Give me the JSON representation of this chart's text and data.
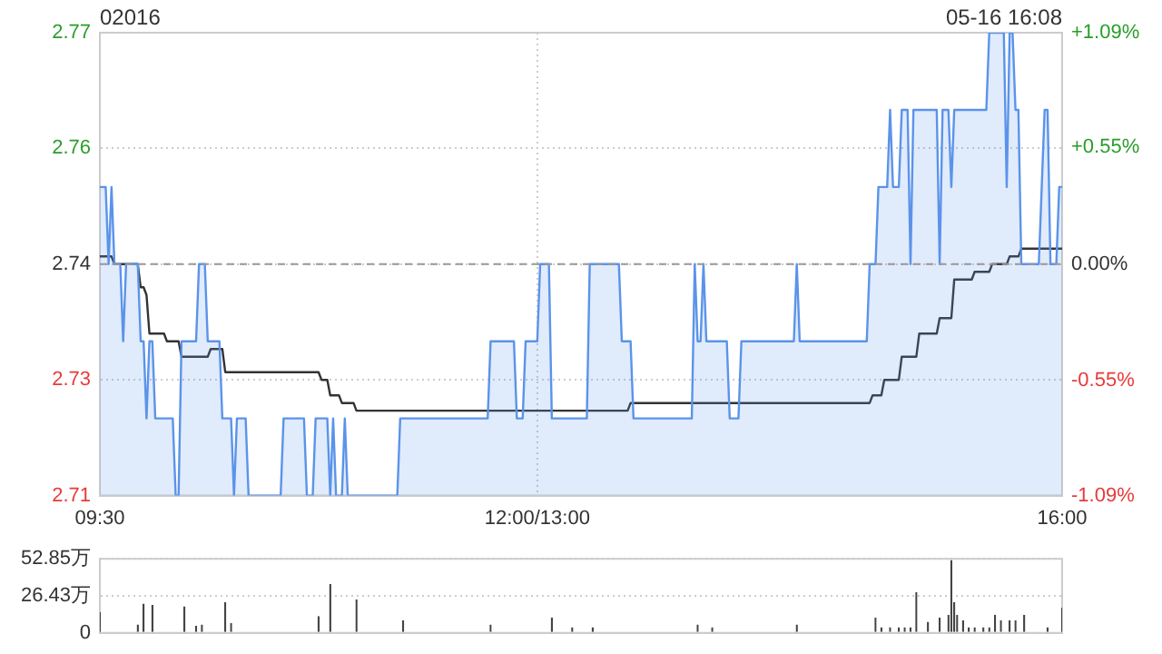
{
  "chart_data": [
    {
      "type": "area",
      "title": "02016",
      "annotations": [
        "05-16 16:08"
      ],
      "categories": [
        "09:30",
        null,
        null,
        null,
        null,
        null,
        null,
        null,
        null,
        null,
        null,
        null,
        null,
        null,
        null,
        null,
        null,
        null,
        null,
        null,
        null,
        null,
        null,
        null,
        null,
        null,
        null,
        null,
        null,
        null,
        null,
        null,
        null,
        null,
        null,
        null,
        null,
        null,
        null,
        null,
        null,
        null,
        null,
        null,
        null,
        null,
        null,
        null,
        null,
        null,
        null,
        null,
        null,
        null,
        null,
        null,
        null,
        null,
        null,
        null,
        null,
        null,
        null,
        null,
        null,
        null,
        null,
        null,
        null,
        null,
        null,
        null,
        null,
        null,
        null,
        null,
        null,
        null,
        null,
        null,
        null,
        null,
        null,
        null,
        null,
        null,
        null,
        null,
        null,
        null,
        null,
        null,
        null,
        null,
        null,
        null,
        null,
        null,
        null,
        null,
        null,
        null,
        null,
        null,
        null,
        null,
        null,
        null,
        null,
        null,
        null,
        null,
        null,
        null,
        null,
        null,
        null,
        null,
        null,
        null,
        null,
        null,
        null,
        null,
        null,
        null,
        null,
        null,
        null,
        null,
        null,
        null,
        null,
        null,
        null,
        null,
        null,
        null,
        null,
        null,
        null,
        null,
        null,
        null,
        null,
        null,
        null,
        null,
        null,
        null,
        "12:00/13:00",
        null,
        null,
        null,
        null,
        null,
        null,
        null,
        null,
        null,
        null,
        null,
        null,
        null,
        null,
        null,
        null,
        null,
        null,
        null,
        null,
        null,
        null,
        null,
        null,
        null,
        null,
        null,
        null,
        null,
        null,
        null,
        null,
        null,
        null,
        null,
        null,
        null,
        null,
        null,
        null,
        null,
        null,
        null,
        null,
        null,
        null,
        null,
        null,
        null,
        null,
        null,
        null,
        null,
        null,
        null,
        null,
        null,
        null,
        null,
        null,
        null,
        null,
        null,
        null,
        null,
        null,
        null,
        null,
        null,
        null,
        null,
        null,
        null,
        null,
        null,
        null,
        null,
        null,
        null,
        null,
        null,
        null,
        null,
        null,
        null,
        null,
        null,
        null,
        null,
        null,
        null,
        null,
        null,
        null,
        null,
        null,
        null,
        null,
        null,
        null,
        null,
        null,
        null,
        null,
        null,
        null,
        null,
        null,
        null,
        null,
        null,
        null,
        null,
        null,
        null,
        null,
        null,
        null,
        null,
        null,
        null,
        null,
        null,
        null,
        null,
        null,
        null,
        null,
        null,
        null,
        null,
        null,
        null,
        null,
        null,
        null,
        null,
        null,
        null,
        null,
        null,
        null,
        null,
        null,
        null,
        null,
        null,
        null,
        null,
        null,
        null,
        null,
        null,
        null,
        null,
        null,
        null,
        null,
        null,
        null,
        null,
        null,
        null,
        null,
        null,
        null,
        null,
        null,
        null,
        null,
        null,
        null,
        null,
        null,
        null,
        null,
        null,
        null,
        null,
        "16:00"
      ],
      "ylim": [
        2.71,
        2.77
      ],
      "yticks": [
        2.71,
        {
          "value": 2.725,
          "label": "2.73"
        },
        2.74,
        {
          "value": 2.755,
          "label": "2.76"
        },
        2.77
      ],
      "y2lim": [
        -1.09,
        1.09
      ],
      "y2ticks": [
        {
          "value": -1.09,
          "label": "-1.09%"
        },
        {
          "value": -0.55,
          "label": "-0.55%"
        },
        {
          "value": 0,
          "label": "0.00%"
        },
        {
          "value": 0.55,
          "label": "+0.55%"
        },
        {
          "value": 1.09,
          "label": "+1.09%"
        }
      ],
      "grid": true,
      "ref_lines": [
        {
          "axis": "y",
          "value": 2.74,
          "color": "#999999",
          "line_style": "dashed"
        }
      ],
      "series": [
        {
          "color": "#5b93ea",
          "values": [
            2.75,
            2.75,
            2.75,
            2.74,
            2.75,
            2.74,
            2.74,
            2.74,
            2.73,
            2.74,
            2.74,
            2.74,
            2.74,
            2.74,
            2.73,
            2.73,
            2.72,
            2.73,
            2.73,
            2.72,
            2.72,
            2.72,
            2.72,
            2.72,
            2.72,
            2.72,
            2.71,
            2.71,
            2.73,
            2.73,
            2.73,
            2.73,
            2.73,
            2.73,
            2.74,
            2.74,
            2.74,
            2.73,
            2.73,
            2.73,
            2.73,
            2.73,
            2.72,
            2.72,
            2.72,
            2.72,
            2.71,
            2.72,
            2.72,
            2.72,
            2.72,
            2.71,
            2.71,
            2.71,
            2.71,
            2.71,
            2.71,
            2.71,
            2.71,
            2.71,
            2.71,
            2.71,
            2.71,
            2.72,
            2.72,
            2.72,
            2.72,
            2.72,
            2.72,
            2.72,
            2.72,
            2.71,
            2.71,
            2.71,
            2.72,
            2.72,
            2.72,
            2.72,
            2.72,
            2.71,
            2.72,
            2.71,
            2.71,
            2.71,
            2.72,
            2.71,
            2.71,
            2.71,
            2.71,
            2.71,
            2.71,
            2.71,
            2.71,
            2.71,
            2.71,
            2.71,
            2.71,
            2.71,
            2.71,
            2.71,
            2.71,
            2.71,
            2.71,
            2.72,
            2.72,
            2.72,
            2.72,
            2.72,
            2.72,
            2.72,
            2.72,
            2.72,
            2.72,
            2.72,
            2.72,
            2.72,
            2.72,
            2.72,
            2.72,
            2.72,
            2.72,
            2.72,
            2.72,
            2.72,
            2.72,
            2.72,
            2.72,
            2.72,
            2.72,
            2.72,
            2.72,
            2.72,
            2.72,
            2.72,
            2.73,
            2.73,
            2.73,
            2.73,
            2.73,
            2.73,
            2.73,
            2.73,
            2.73,
            2.72,
            2.72,
            2.72,
            2.73,
            2.73,
            2.73,
            2.73,
            2.73,
            2.74,
            2.74,
            2.74,
            2.74,
            2.72,
            2.72,
            2.72,
            2.72,
            2.72,
            2.72,
            2.72,
            2.72,
            2.72,
            2.72,
            2.72,
            2.72,
            2.72,
            2.74,
            2.74,
            2.74,
            2.74,
            2.74,
            2.74,
            2.74,
            2.74,
            2.74,
            2.74,
            2.74,
            2.73,
            2.73,
            2.73,
            2.73,
            2.72,
            2.72,
            2.72,
            2.72,
            2.72,
            2.72,
            2.72,
            2.72,
            2.72,
            2.72,
            2.72,
            2.72,
            2.72,
            2.72,
            2.72,
            2.72,
            2.72,
            2.72,
            2.72,
            2.72,
            2.72,
            2.74,
            2.73,
            2.73,
            2.74,
            2.73,
            2.73,
            2.73,
            2.73,
            2.73,
            2.73,
            2.73,
            2.73,
            2.72,
            2.72,
            2.72,
            2.72,
            2.73,
            2.73,
            2.73,
            2.73,
            2.73,
            2.73,
            2.73,
            2.73,
            2.73,
            2.73,
            2.73,
            2.73,
            2.73,
            2.73,
            2.73,
            2.73,
            2.73,
            2.73,
            2.73,
            2.74,
            2.73,
            2.73,
            2.73,
            2.73,
            2.73,
            2.73,
            2.73,
            2.73,
            2.73,
            2.73,
            2.73,
            2.73,
            2.73,
            2.73,
            2.73,
            2.73,
            2.73,
            2.73,
            2.73,
            2.73,
            2.73,
            2.73,
            2.73,
            2.73,
            2.74,
            2.74,
            2.74,
            2.75,
            2.75,
            2.75,
            2.75,
            2.76,
            2.75,
            2.75,
            2.75,
            2.76,
            2.76,
            2.76,
            2.74,
            2.76,
            2.76,
            2.76,
            2.76,
            2.76,
            2.76,
            2.76,
            2.76,
            2.76,
            2.74,
            2.76,
            2.76,
            2.76,
            2.75,
            2.76,
            2.76,
            2.76,
            2.76,
            2.76,
            2.76,
            2.76,
            2.76,
            2.76,
            2.76,
            2.76,
            2.76,
            2.77,
            2.77,
            2.77,
            2.77,
            2.77,
            2.77,
            2.75,
            2.77,
            2.77,
            2.76,
            2.76,
            2.74,
            2.74,
            2.74,
            2.74,
            2.74,
            2.74,
            2.74,
            2.75,
            2.76,
            2.76,
            2.74,
            2.74,
            2.74,
            2.75,
            2.75
          ]
        },
        {
          "type": "line",
          "color": "#333333",
          "values": [
            2.741,
            2.741,
            2.741,
            2.741,
            2.741,
            2.74,
            2.74,
            2.74,
            2.74,
            2.74,
            2.74,
            2.74,
            2.74,
            2.74,
            2.737,
            2.737,
            2.736,
            2.731,
            2.731,
            2.731,
            2.731,
            2.731,
            2.731,
            2.73,
            2.73,
            2.73,
            2.73,
            2.73,
            2.728,
            2.728,
            2.728,
            2.728,
            2.728,
            2.728,
            2.728,
            2.728,
            2.728,
            2.728,
            2.729,
            2.729,
            2.729,
            2.729,
            2.729,
            2.726,
            2.726,
            2.726,
            2.726,
            2.726,
            2.726,
            2.726,
            2.726,
            2.726,
            2.726,
            2.726,
            2.726,
            2.726,
            2.726,
            2.726,
            2.726,
            2.726,
            2.726,
            2.726,
            2.726,
            2.726,
            2.726,
            2.726,
            2.726,
            2.726,
            2.726,
            2.726,
            2.726,
            2.726,
            2.726,
            2.726,
            2.726,
            2.726,
            2.725,
            2.725,
            2.725,
            2.723,
            2.723,
            2.723,
            2.723,
            2.722,
            2.722,
            2.722,
            2.722,
            2.722,
            2.721,
            2.721,
            2.721,
            2.721,
            2.721,
            2.721,
            2.721,
            2.721,
            2.721,
            2.721,
            2.721,
            2.721,
            2.721,
            2.721,
            2.721,
            2.721,
            2.721,
            2.721,
            2.721,
            2.721,
            2.721,
            2.721,
            2.721,
            2.721,
            2.721,
            2.721,
            2.721,
            2.721,
            2.721,
            2.721,
            2.721,
            2.721,
            2.721,
            2.721,
            2.721,
            2.721,
            2.721,
            2.721,
            2.721,
            2.721,
            2.721,
            2.721,
            2.721,
            2.721,
            2.721,
            2.721,
            2.721,
            2.721,
            2.721,
            2.721,
            2.721,
            2.721,
            2.721,
            2.721,
            2.721,
            2.721,
            2.721,
            2.721,
            2.721,
            2.721,
            2.721,
            2.721,
            2.721,
            2.721,
            2.721,
            2.721,
            2.721,
            2.721,
            2.721,
            2.721,
            2.721,
            2.721,
            2.721,
            2.721,
            2.721,
            2.721,
            2.721,
            2.721,
            2.721,
            2.721,
            2.721,
            2.721,
            2.721,
            2.721,
            2.721,
            2.721,
            2.721,
            2.721,
            2.721,
            2.721,
            2.721,
            2.721,
            2.721,
            2.721,
            2.722,
            2.722,
            2.722,
            2.722,
            2.722,
            2.722,
            2.722,
            2.722,
            2.722,
            2.722,
            2.722,
            2.722,
            2.722,
            2.722,
            2.722,
            2.722,
            2.722,
            2.722,
            2.722,
            2.722,
            2.722,
            2.722,
            2.722,
            2.722,
            2.722,
            2.722,
            2.722,
            2.722,
            2.722,
            2.722,
            2.722,
            2.722,
            2.722,
            2.722,
            2.722,
            2.722,
            2.722,
            2.722,
            2.722,
            2.722,
            2.722,
            2.722,
            2.722,
            2.722,
            2.722,
            2.722,
            2.722,
            2.722,
            2.722,
            2.722,
            2.722,
            2.722,
            2.722,
            2.722,
            2.722,
            2.722,
            2.722,
            2.722,
            2.722,
            2.722,
            2.722,
            2.722,
            2.722,
            2.722,
            2.722,
            2.722,
            2.722,
            2.722,
            2.722,
            2.722,
            2.722,
            2.722,
            2.722,
            2.722,
            2.722,
            2.722,
            2.722,
            2.722,
            2.722,
            2.722,
            2.722,
            2.722,
            2.722,
            2.723,
            2.723,
            2.723,
            2.723,
            2.725,
            2.725,
            2.725,
            2.725,
            2.725,
            2.725,
            2.728,
            2.728,
            2.728,
            2.728,
            2.728,
            2.728,
            2.731,
            2.731,
            2.731,
            2.731,
            2.731,
            2.731,
            2.731,
            2.733,
            2.733,
            2.733,
            2.733,
            2.733,
            2.738,
            2.738,
            2.738,
            2.738,
            2.738,
            2.738,
            2.738,
            2.739,
            2.739,
            2.739,
            2.739,
            2.739,
            2.739,
            2.74,
            2.74,
            2.74,
            2.74,
            2.74,
            2.74,
            2.741,
            2.741,
            2.741,
            2.741,
            2.742,
            2.742,
            2.742,
            2.742,
            2.742,
            2.742,
            2.742,
            2.742,
            2.742,
            2.742,
            2.742,
            2.742,
            2.742,
            2.742,
            2.742
          ]
        }
      ]
    },
    {
      "type": "bar",
      "color": "#444444",
      "grid": "y",
      "categories": [
        null,
        null,
        null,
        null,
        null,
        null,
        null,
        null,
        null,
        null,
        null,
        null,
        null,
        null,
        null,
        null,
        null,
        null,
        null,
        null,
        null,
        null,
        null,
        null,
        null,
        null,
        null,
        null,
        null,
        null,
        null,
        null,
        null,
        null,
        null,
        null,
        null,
        null,
        null,
        null,
        null,
        null,
        null,
        null,
        null,
        null,
        null,
        null,
        null,
        null,
        null,
        null,
        null,
        null,
        null,
        null,
        null,
        null,
        null,
        null,
        null,
        null,
        null,
        null,
        null,
        null,
        null,
        null,
        null,
        null,
        null,
        null,
        null,
        null,
        null,
        null,
        null,
        null,
        null,
        null,
        null,
        null,
        null,
        null,
        null,
        null,
        null,
        null,
        null,
        null,
        null,
        null,
        null,
        null,
        null,
        null,
        null,
        null,
        null,
        null,
        null,
        null,
        null,
        null,
        null,
        null,
        null,
        null,
        null,
        null,
        null,
        null,
        null,
        null,
        null,
        null,
        null,
        null,
        null,
        null,
        null,
        null,
        null,
        null,
        null,
        null,
        null,
        null,
        null,
        null,
        null,
        null,
        null,
        null,
        null,
        null,
        null,
        null,
        null,
        null,
        null,
        null,
        null,
        null,
        null,
        null,
        null,
        null,
        null,
        null,
        null,
        null,
        null,
        null,
        null,
        null,
        null,
        null,
        null,
        null,
        null,
        null,
        null,
        null,
        null,
        null,
        null,
        null,
        null,
        null,
        null,
        null,
        null,
        null,
        null,
        null,
        null,
        null,
        null,
        null,
        null,
        null,
        null,
        null,
        null,
        null,
        null,
        null,
        null,
        null,
        null,
        null,
        null,
        null,
        null,
        null,
        null,
        null,
        null,
        null,
        null,
        null,
        null,
        null,
        null,
        null,
        null,
        null,
        null,
        null,
        null,
        null,
        null,
        null,
        null,
        null,
        null,
        null,
        null,
        null,
        null,
        null,
        null,
        null,
        null,
        null,
        null,
        null,
        null,
        null,
        null,
        null,
        null,
        null,
        null,
        null,
        null,
        null,
        null,
        null,
        null,
        null,
        null,
        null,
        null,
        null,
        null,
        null,
        null,
        null,
        null,
        null,
        null,
        null,
        null,
        null,
        null,
        null,
        null,
        null,
        null,
        null,
        null,
        null,
        null,
        null,
        null,
        null,
        null,
        null,
        null,
        null,
        null,
        null,
        null,
        null,
        null,
        null,
        null,
        null,
        null,
        null,
        null,
        null,
        null,
        null,
        null,
        null,
        null,
        null,
        null,
        null,
        null,
        null,
        null,
        null,
        null,
        null,
        null,
        null,
        null,
        null,
        null,
        null,
        null,
        null,
        null,
        null,
        null,
        null,
        null,
        null,
        null,
        null,
        null,
        null,
        null,
        null,
        null,
        null,
        null,
        null,
        null,
        null,
        null,
        null,
        null,
        null,
        null,
        null,
        null
      ],
      "ylim": [
        0,
        52.85
      ],
      "yticks": [
        0,
        {
          "value": 26.43,
          "label": "26.43万"
        },
        {
          "value": 52.85,
          "label": "52.85万"
        }
      ],
      "values": [
        15,
        null,
        null,
        null,
        null,
        null,
        null,
        null,
        null,
        null,
        null,
        null,
        null,
        6,
        null,
        21,
        null,
        null,
        20,
        null,
        null,
        null,
        null,
        null,
        null,
        null,
        null,
        null,
        null,
        19,
        null,
        null,
        null,
        5,
        null,
        6,
        null,
        null,
        null,
        null,
        null,
        null,
        null,
        22,
        null,
        7,
        null,
        null,
        null,
        null,
        null,
        null,
        null,
        null,
        null,
        null,
        null,
        null,
        null,
        null,
        null,
        null,
        null,
        null,
        null,
        null,
        null,
        null,
        null,
        null,
        null,
        null,
        null,
        null,
        null,
        12,
        null,
        null,
        null,
        35,
        null,
        null,
        null,
        null,
        null,
        null,
        null,
        null,
        24,
        null,
        null,
        null,
        null,
        null,
        null,
        null,
        null,
        null,
        null,
        null,
        null,
        null,
        null,
        null,
        9,
        null,
        null,
        null,
        null,
        null,
        null,
        null,
        null,
        null,
        null,
        null,
        null,
        null,
        null,
        null,
        null,
        null,
        null,
        null,
        null,
        null,
        null,
        null,
        null,
        null,
        null,
        null,
        null,
        null,
        6,
        null,
        null,
        null,
        null,
        null,
        null,
        null,
        null,
        null,
        null,
        null,
        null,
        null,
        null,
        null,
        null,
        null,
        null,
        null,
        null,
        11,
        null,
        null,
        null,
        null,
        null,
        null,
        4,
        null,
        null,
        null,
        null,
        null,
        null,
        4,
        null,
        null,
        null,
        null,
        null,
        null,
        null,
        null,
        null,
        null,
        null,
        null,
        null,
        null,
        null,
        null,
        null,
        null,
        null,
        null,
        null,
        null,
        null,
        null,
        null,
        null,
        null,
        null,
        null,
        null,
        null,
        null,
        null,
        null,
        null,
        6,
        null,
        null,
        null,
        null,
        4,
        null,
        null,
        null,
        null,
        null,
        null,
        null,
        null,
        null,
        null,
        null,
        null,
        null,
        null,
        null,
        null,
        null,
        null,
        null,
        null,
        null,
        null,
        null,
        null,
        null,
        null,
        null,
        null,
        6,
        null,
        null,
        null,
        null,
        null,
        null,
        null,
        null,
        null,
        null,
        null,
        null,
        null,
        null,
        null,
        null,
        null,
        null,
        null,
        null,
        null,
        null,
        null,
        null,
        null,
        null,
        11,
        null,
        4,
        null,
        null,
        4,
        null,
        null,
        4,
        null,
        4,
        null,
        4,
        null,
        29,
        null,
        null,
        null,
        8,
        null,
        null,
        null,
        11,
        null,
        null,
        13,
        52,
        22,
        13,
        null,
        9,
        null,
        4,
        null,
        4,
        null,
        null,
        4,
        null,
        4,
        null,
        13,
        null,
        9,
        null,
        null,
        9,
        null,
        9,
        null,
        null,
        13,
        null,
        null,
        null,
        null,
        null,
        null,
        null,
        4,
        null,
        null,
        null,
        null,
        18
      ]
    }
  ]
}
